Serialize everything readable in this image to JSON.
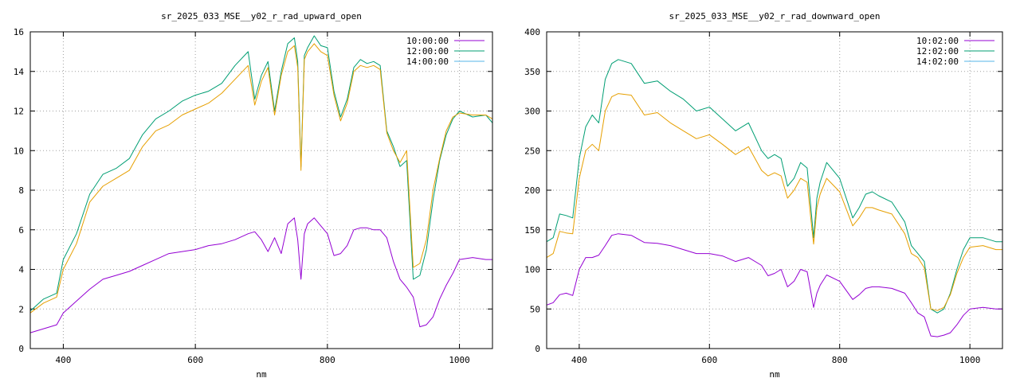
{
  "chart_data": [
    {
      "type": "line",
      "title": "sr_2025_033_MSE__y02_r_rad_upward_open",
      "xlabel": "nm",
      "ylabel": "",
      "xlim": [
        350,
        1050
      ],
      "ylim": [
        0,
        16
      ],
      "xticks": [
        400,
        600,
        800,
        1000
      ],
      "yticks": [
        0,
        2,
        4,
        6,
        8,
        10,
        12,
        14,
        16
      ],
      "grid": true,
      "legend_position": "top-right",
      "series": [
        {
          "name": "10:00:00",
          "color": "#9400d3",
          "x": [
            350,
            370,
            390,
            400,
            420,
            440,
            460,
            480,
            500,
            520,
            540,
            560,
            580,
            600,
            620,
            640,
            660,
            680,
            690,
            700,
            710,
            720,
            730,
            740,
            750,
            755,
            760,
            765,
            770,
            780,
            790,
            800,
            810,
            820,
            830,
            840,
            850,
            860,
            870,
            880,
            890,
            900,
            910,
            920,
            930,
            940,
            950,
            960,
            970,
            980,
            990,
            1000,
            1020,
            1040,
            1050
          ],
          "y": [
            0.8,
            1.0,
            1.2,
            1.8,
            2.4,
            3.0,
            3.5,
            3.7,
            3.9,
            4.2,
            4.5,
            4.8,
            4.9,
            5.0,
            5.2,
            5.3,
            5.5,
            5.8,
            5.9,
            5.5,
            4.9,
            5.6,
            4.8,
            6.3,
            6.6,
            5.5,
            3.5,
            5.8,
            6.3,
            6.6,
            6.2,
            5.8,
            4.7,
            4.8,
            5.2,
            6.0,
            6.1,
            6.1,
            6.0,
            6.0,
            5.6,
            4.4,
            3.5,
            3.1,
            2.6,
            1.1,
            1.2,
            1.6,
            2.5,
            3.2,
            3.8,
            4.5,
            4.6,
            4.5,
            4.5
          ]
        },
        {
          "name": "12:00:00",
          "color": "#009e73",
          "x": [
            350,
            370,
            390,
            400,
            420,
            440,
            460,
            480,
            500,
            520,
            540,
            560,
            580,
            600,
            620,
            640,
            660,
            680,
            690,
            700,
            710,
            720,
            730,
            740,
            750,
            755,
            760,
            765,
            770,
            780,
            790,
            800,
            810,
            820,
            830,
            840,
            850,
            860,
            870,
            880,
            890,
            900,
            910,
            920,
            930,
            940,
            950,
            960,
            970,
            980,
            990,
            1000,
            1020,
            1040,
            1050
          ],
          "y": [
            1.9,
            2.5,
            2.8,
            4.5,
            5.8,
            7.8,
            8.8,
            9.1,
            9.6,
            10.8,
            11.6,
            12.0,
            12.5,
            12.8,
            13.0,
            13.4,
            14.3,
            15.0,
            12.6,
            13.8,
            14.5,
            12.0,
            14.0,
            15.4,
            15.7,
            14.5,
            9.2,
            14.8,
            15.2,
            15.8,
            15.3,
            15.2,
            13.0,
            11.7,
            12.6,
            14.2,
            14.6,
            14.4,
            14.5,
            14.3,
            11.0,
            10.2,
            9.2,
            9.5,
            3.5,
            3.7,
            5.0,
            7.5,
            9.5,
            10.8,
            11.6,
            12.0,
            11.7,
            11.8,
            11.4
          ]
        },
        {
          "name": "14:00:00",
          "color": "#56b4e9",
          "x": [],
          "y": []
        },
        {
          "name": "",
          "color": "#e69f00",
          "x": [
            350,
            370,
            390,
            400,
            420,
            440,
            460,
            480,
            500,
            520,
            540,
            560,
            580,
            600,
            620,
            640,
            660,
            680,
            690,
            700,
            710,
            720,
            730,
            740,
            750,
            755,
            760,
            765,
            770,
            780,
            790,
            800,
            810,
            820,
            830,
            840,
            850,
            860,
            870,
            880,
            890,
            900,
            910,
            920,
            930,
            940,
            950,
            960,
            970,
            980,
            990,
            1000,
            1020,
            1040,
            1050
          ],
          "y": [
            1.8,
            2.3,
            2.6,
            4.0,
            5.3,
            7.4,
            8.2,
            8.6,
            9.0,
            10.2,
            11.0,
            11.3,
            11.8,
            12.1,
            12.4,
            12.9,
            13.6,
            14.3,
            12.3,
            13.5,
            14.2,
            11.8,
            13.8,
            15.0,
            15.3,
            14.2,
            9.0,
            14.6,
            15.0,
            15.4,
            15.0,
            14.8,
            12.8,
            11.5,
            12.4,
            14.0,
            14.3,
            14.2,
            14.3,
            14.1,
            10.9,
            10.0,
            9.4,
            10.0,
            4.1,
            4.3,
            5.5,
            8.0,
            9.6,
            11.0,
            11.7,
            11.9,
            11.8,
            11.8,
            11.6
          ]
        }
      ]
    },
    {
      "type": "line",
      "title": "sr_2025_033_MSE__y02_r_rad_downward_open",
      "xlabel": "nm",
      "ylabel": "",
      "xlim": [
        350,
        1050
      ],
      "ylim": [
        0,
        400
      ],
      "xticks": [
        400,
        600,
        800,
        1000
      ],
      "yticks": [
        0,
        50,
        100,
        150,
        200,
        250,
        300,
        350,
        400
      ],
      "grid": true,
      "legend_position": "top-right",
      "series": [
        {
          "name": "10:02:00",
          "color": "#9400d3",
          "x": [
            350,
            360,
            370,
            380,
            390,
            400,
            410,
            420,
            430,
            440,
            450,
            460,
            480,
            500,
            520,
            540,
            560,
            580,
            600,
            620,
            640,
            660,
            680,
            690,
            700,
            710,
            720,
            730,
            740,
            750,
            755,
            760,
            765,
            770,
            780,
            800,
            820,
            830,
            840,
            850,
            860,
            880,
            900,
            910,
            920,
            930,
            940,
            950,
            960,
            970,
            980,
            990,
            1000,
            1020,
            1040,
            1050
          ],
          "y": [
            55,
            58,
            68,
            70,
            67,
            100,
            115,
            115,
            118,
            130,
            143,
            145,
            143,
            134,
            133,
            130,
            125,
            120,
            120,
            117,
            110,
            115,
            105,
            92,
            95,
            100,
            78,
            85,
            100,
            97,
            75,
            52,
            70,
            80,
            93,
            85,
            62,
            68,
            76,
            78,
            78,
            76,
            70,
            58,
            45,
            40,
            16,
            15,
            17,
            20,
            30,
            42,
            50,
            52,
            50,
            50
          ]
        },
        {
          "name": "12:02:00",
          "color": "#009e73",
          "x": [
            350,
            360,
            370,
            380,
            390,
            400,
            410,
            420,
            430,
            440,
            450,
            460,
            480,
            500,
            520,
            540,
            560,
            580,
            600,
            620,
            640,
            660,
            680,
            690,
            700,
            710,
            720,
            730,
            740,
            750,
            755,
            760,
            765,
            770,
            780,
            800,
            820,
            830,
            840,
            850,
            860,
            880,
            900,
            910,
            920,
            930,
            940,
            950,
            960,
            970,
            980,
            990,
            1000,
            1020,
            1040,
            1050
          ],
          "y": [
            135,
            140,
            170,
            168,
            165,
            240,
            280,
            295,
            285,
            340,
            360,
            365,
            360,
            335,
            338,
            325,
            315,
            300,
            305,
            290,
            275,
            285,
            250,
            240,
            245,
            240,
            205,
            215,
            235,
            228,
            185,
            140,
            190,
            210,
            235,
            215,
            165,
            178,
            195,
            198,
            193,
            185,
            160,
            130,
            120,
            110,
            50,
            45,
            50,
            70,
            100,
            125,
            140,
            140,
            135,
            135
          ]
        },
        {
          "name": "14:02:00",
          "color": "#56b4e9",
          "x": [],
          "y": []
        },
        {
          "name": "",
          "color": "#e69f00",
          "x": [
            350,
            360,
            370,
            380,
            390,
            400,
            410,
            420,
            430,
            440,
            450,
            460,
            480,
            500,
            520,
            540,
            560,
            580,
            600,
            620,
            640,
            660,
            680,
            690,
            700,
            710,
            720,
            730,
            740,
            750,
            755,
            760,
            765,
            770,
            780,
            800,
            820,
            830,
            840,
            850,
            860,
            880,
            900,
            910,
            920,
            930,
            940,
            950,
            960,
            970,
            980,
            990,
            1000,
            1020,
            1040,
            1050
          ],
          "y": [
            115,
            120,
            148,
            146,
            145,
            215,
            250,
            258,
            250,
            300,
            318,
            322,
            320,
            295,
            298,
            285,
            275,
            265,
            270,
            258,
            245,
            255,
            225,
            218,
            222,
            218,
            190,
            200,
            215,
            210,
            170,
            132,
            178,
            195,
            215,
            198,
            155,
            165,
            178,
            178,
            175,
            170,
            145,
            120,
            115,
            102,
            50,
            48,
            52,
            68,
            95,
            115,
            128,
            130,
            125,
            125
          ]
        }
      ]
    }
  ]
}
